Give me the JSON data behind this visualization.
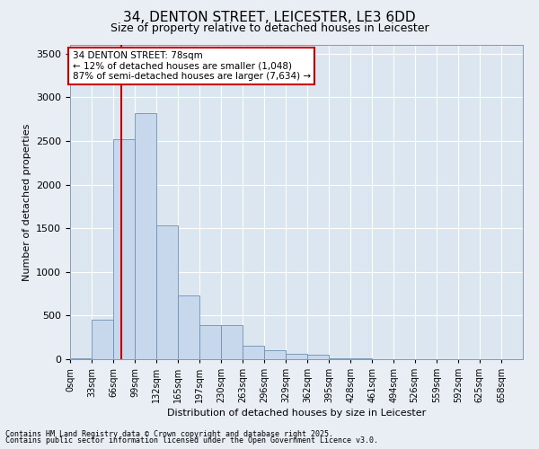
{
  "title": "34, DENTON STREET, LEICESTER, LE3 6DD",
  "subtitle": "Size of property relative to detached houses in Leicester",
  "xlabel": "Distribution of detached houses by size in Leicester",
  "ylabel": "Number of detached properties",
  "property_size": 78,
  "property_label": "34 DENTON STREET: 78sqm",
  "annotation_line1": "← 12% of detached houses are smaller (1,048)",
  "annotation_line2": "87% of semi-detached houses are larger (7,634) →",
  "footnote1": "Contains HM Land Registry data © Crown copyright and database right 2025.",
  "footnote2": "Contains public sector information licensed under the Open Government Licence v3.0.",
  "bar_color": "#c8d8ec",
  "bar_edge_color": "#7090b0",
  "vline_color": "#cc0000",
  "annotation_box_edge": "#cc0000",
  "background_color": "#e8eef4",
  "plot_bg_color": "#dce6f0",
  "categories": [
    "0sqm",
    "33sqm",
    "66sqm",
    "99sqm",
    "132sqm",
    "165sqm",
    "197sqm",
    "230sqm",
    "263sqm",
    "296sqm",
    "329sqm",
    "362sqm",
    "395sqm",
    "428sqm",
    "461sqm",
    "494sqm",
    "526sqm",
    "559sqm",
    "592sqm",
    "625sqm",
    "658sqm"
  ],
  "bin_left": [
    0,
    33,
    66,
    99,
    132,
    165,
    197,
    230,
    263,
    296,
    329,
    362,
    395,
    428,
    461,
    494,
    526,
    559,
    592,
    625,
    658
  ],
  "bin_widths": [
    33,
    33,
    33,
    33,
    33,
    32,
    33,
    33,
    33,
    33,
    33,
    33,
    33,
    33,
    33,
    32,
    33,
    33,
    33,
    33,
    33
  ],
  "values": [
    10,
    450,
    2520,
    2820,
    1530,
    730,
    390,
    390,
    155,
    100,
    60,
    55,
    10,
    8,
    5,
    4,
    4,
    3,
    2,
    2,
    2
  ],
  "ylim": [
    0,
    3600
  ],
  "yticks": [
    0,
    500,
    1000,
    1500,
    2000,
    2500,
    3000,
    3500
  ],
  "grid_color": "#ffffff",
  "title_fontsize": 11,
  "subtitle_fontsize": 9,
  "figsize": [
    6.0,
    5.0
  ],
  "dpi": 100
}
